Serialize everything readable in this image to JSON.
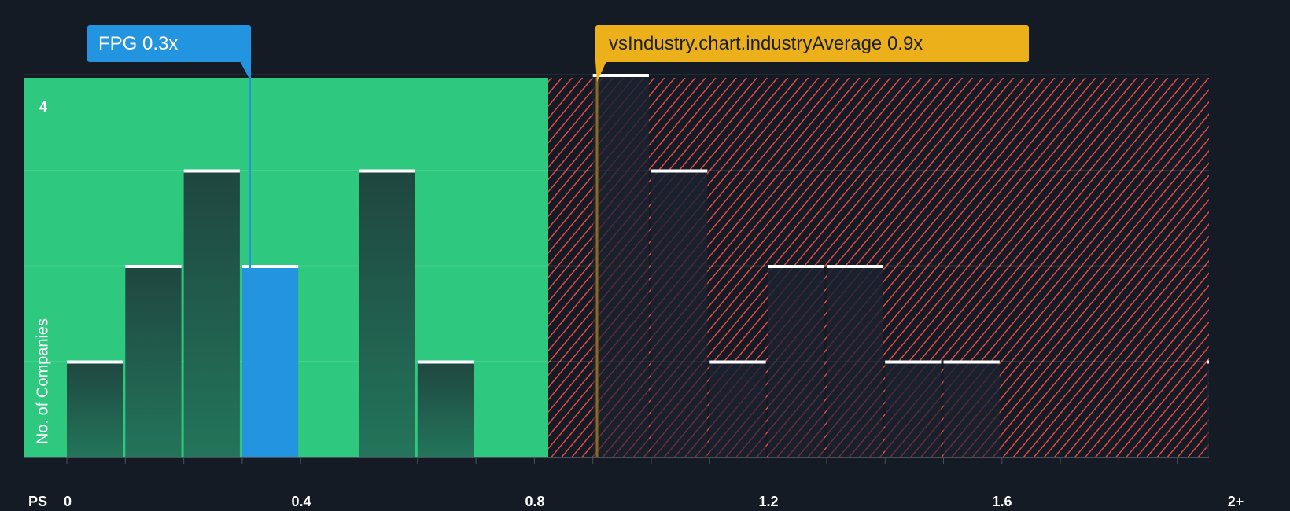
{
  "chart_data": {
    "type": "bar",
    "title": "",
    "xlabel": "PS",
    "ylabel": "No. of Companies",
    "x_tick_labels": [
      "0",
      "0.4",
      "0.8",
      "1.2",
      "1.6",
      "2+"
    ],
    "y_tick_labels": [
      "4"
    ],
    "ylim": [
      0,
      4
    ],
    "bin_width": 0.1,
    "categories": [
      "0-0.1",
      "0.1-0.2",
      "0.2-0.3",
      "0.3-0.4",
      "0.4-0.5",
      "0.5-0.6",
      "0.6-0.7",
      "0.7-0.8",
      "0.8-0.9",
      "0.9-1.0",
      "1.0-1.1",
      "1.1-1.2",
      "1.2-1.3",
      "1.3-1.4",
      "1.4-1.5",
      "1.5-1.6",
      "1.6-1.7",
      "1.7-1.8",
      "1.8-1.9",
      "1.9-2.0",
      "2+"
    ],
    "values": [
      1,
      2,
      3,
      2,
      0,
      3,
      1,
      0,
      0,
      4,
      3,
      1,
      2,
      2,
      1,
      1,
      0,
      0,
      0,
      0,
      1
    ],
    "highlight_bin": "0.3-0.4",
    "company": {
      "name": "FPG",
      "value": 0.3,
      "label": "FPG 0.3x"
    },
    "industry_average": {
      "value": 0.9,
      "label": "vsIndustry.chart.industryAverage 0.9x"
    },
    "undervalued_region_end": 0.867,
    "grid": true,
    "colors": {
      "background": "#151b24",
      "undervalued_region": "#2ec97f",
      "overvalued_hatch": "#e04848",
      "company_bar": "#2394df",
      "industry_marker": "#ecb01a",
      "bar_cap": "#ffffff"
    }
  }
}
